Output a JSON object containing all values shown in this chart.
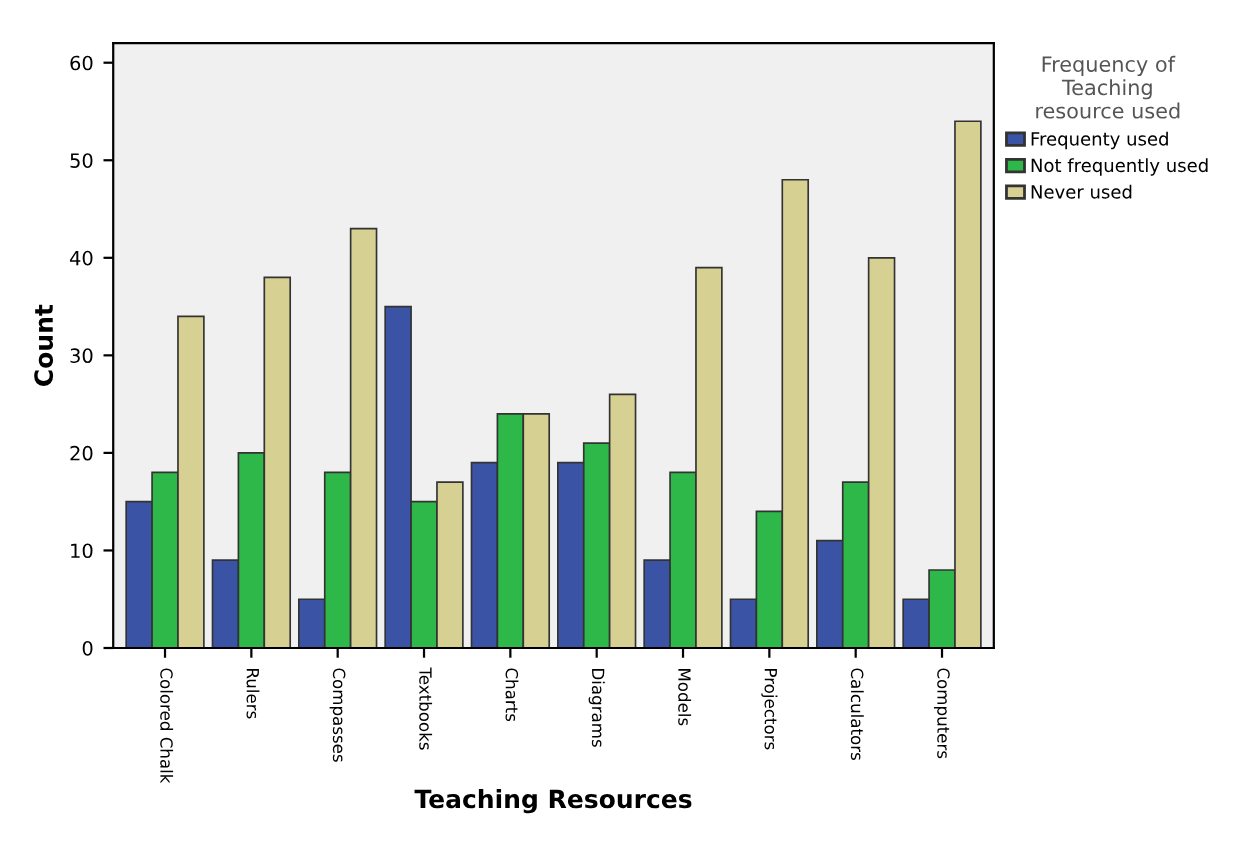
{
  "chart_data": {
    "type": "bar",
    "xlabel": "Teaching Resources",
    "ylabel": "Count",
    "legend_title": "Frequency of\nTeaching\nresource used",
    "categories": [
      "Colored Chalk",
      "Rulers",
      "Compasses",
      "Textbooks",
      "Charts",
      "Diagrams",
      "Models",
      "Projectors",
      "Calculators",
      "Computers"
    ],
    "series": [
      {
        "name": "Frequenty used",
        "color": "#3a53a4",
        "values": [
          15,
          9,
          5,
          35,
          19,
          19,
          9,
          5,
          11,
          5
        ]
      },
      {
        "name": "Not frequently used",
        "color": "#2fb84a",
        "values": [
          18,
          20,
          18,
          15,
          24,
          21,
          18,
          14,
          17,
          8
        ]
      },
      {
        "name": "Never used",
        "color": "#d6d193",
        "values": [
          34,
          38,
          43,
          17,
          24,
          26,
          39,
          48,
          40,
          54
        ]
      }
    ],
    "ylim": [
      0,
      62
    ],
    "yticks": [
      0,
      10,
      20,
      30,
      40,
      50,
      60
    ],
    "grid": false,
    "legend": "top right"
  }
}
